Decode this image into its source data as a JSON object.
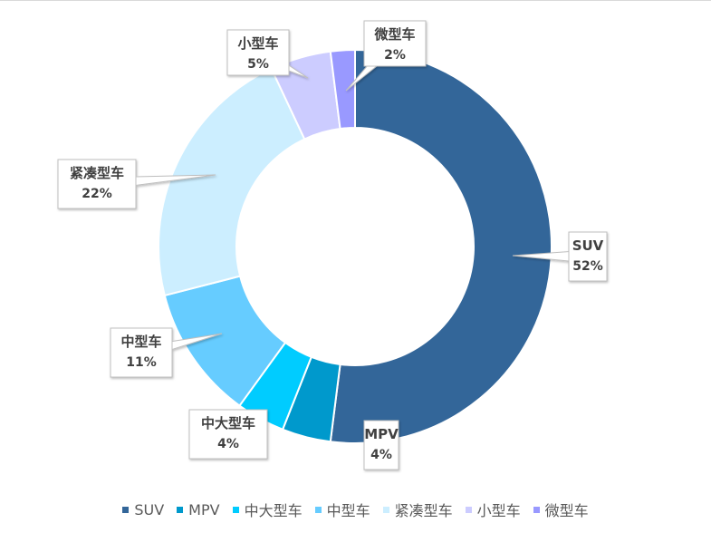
{
  "chart_data": {
    "type": "pie",
    "donut": true,
    "title": "",
    "legend_position": "bottom",
    "series": [
      {
        "name": "SUV",
        "value": 52,
        "label": "52%",
        "color": "#336699"
      },
      {
        "name": "MPV",
        "value": 4,
        "label": "4%",
        "color": "#0099CC"
      },
      {
        "name": "中大型车",
        "value": 4,
        "label": "4%",
        "color": "#00CCFF"
      },
      {
        "name": "中型车",
        "value": 11,
        "label": "11%",
        "color": "#66CCFF"
      },
      {
        "name": "紧凑型车",
        "value": 22,
        "label": "22%",
        "color": "#CCEEFF"
      },
      {
        "name": "小型车",
        "value": 5,
        "label": "5%",
        "color": "#CCCCFF"
      },
      {
        "name": "微型车",
        "value": 2,
        "label": "2%",
        "color": "#9999FF"
      }
    ]
  }
}
